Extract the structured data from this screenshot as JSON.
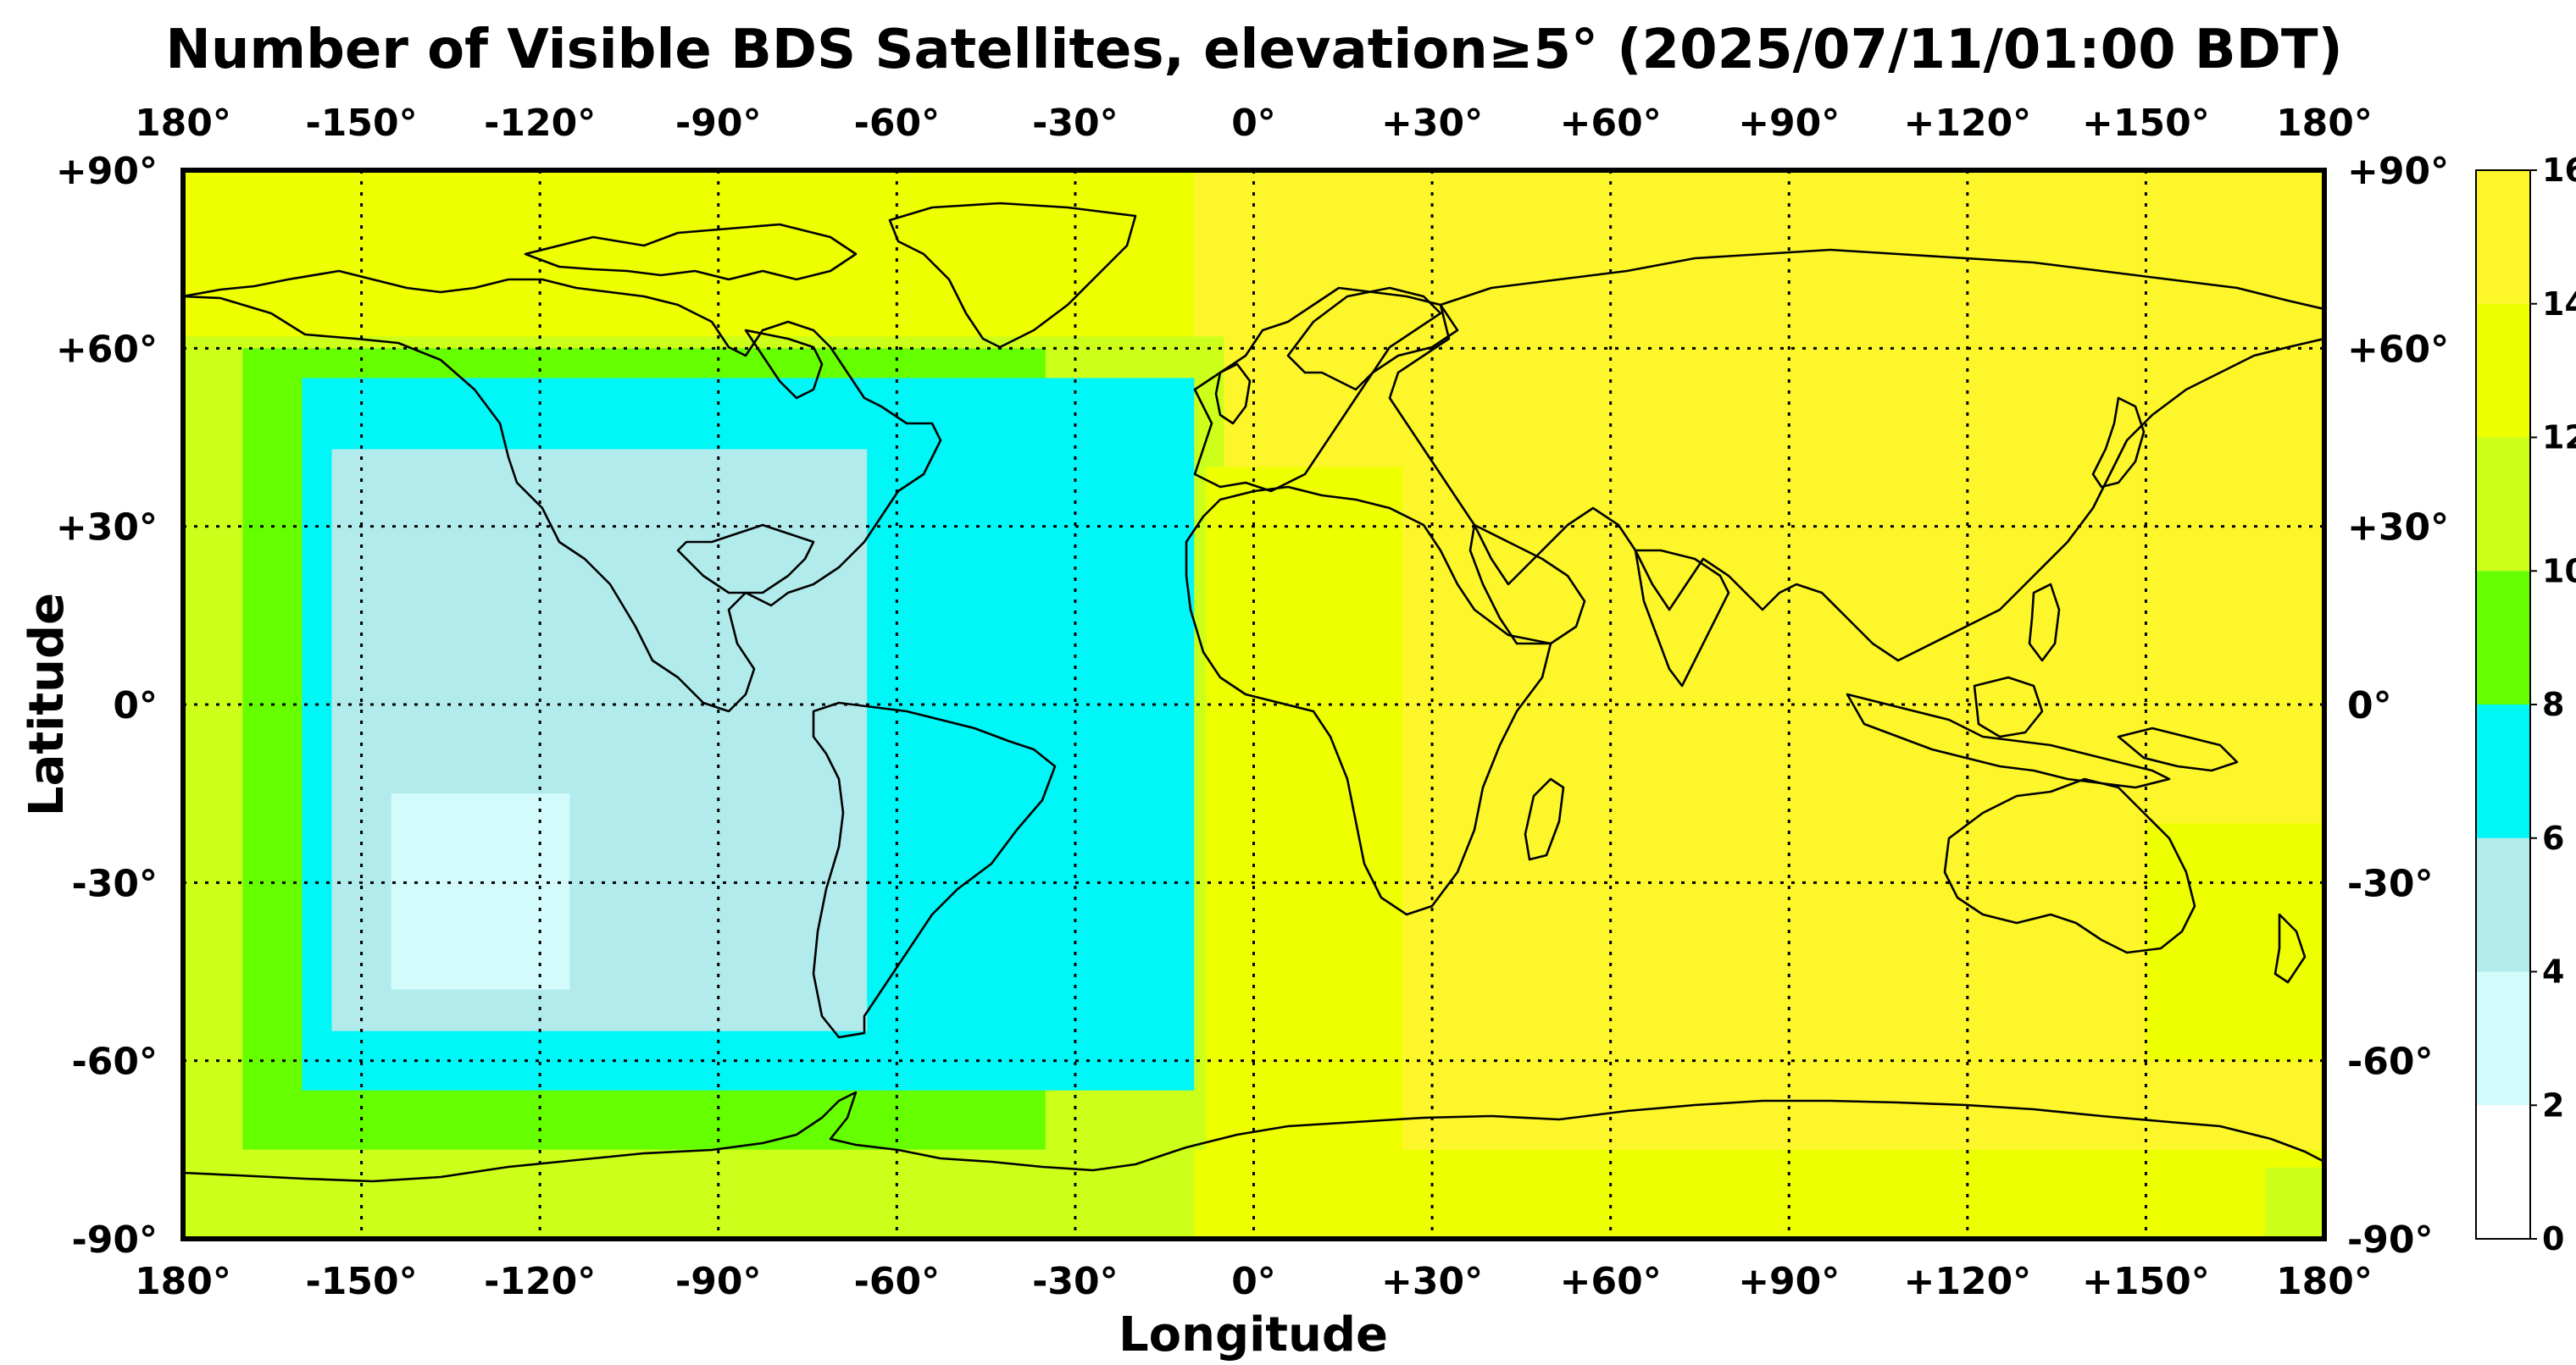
{
  "title": "Number of Visible BDS Satellites, elevation≥5° (2025/07/11/01:00 BDT)",
  "x_axis_label": "Longitude",
  "y_axis_label": "Latitude",
  "x_ticks": [
    {
      "value": -180,
      "label": "180°"
    },
    {
      "value": -150,
      "label": "-150°"
    },
    {
      "value": -120,
      "label": "-120°"
    },
    {
      "value": -90,
      "label": "-90°"
    },
    {
      "value": -60,
      "label": "-60°"
    },
    {
      "value": -30,
      "label": "-30°"
    },
    {
      "value": 0,
      "label": "0°"
    },
    {
      "value": 30,
      "label": "+30°"
    },
    {
      "value": 60,
      "label": "+60°"
    },
    {
      "value": 90,
      "label": "+90°"
    },
    {
      "value": 120,
      "label": "+120°"
    },
    {
      "value": 150,
      "label": "+150°"
    },
    {
      "value": 180,
      "label": "180°"
    }
  ],
  "y_ticks": [
    {
      "value": 90,
      "label": "+90°"
    },
    {
      "value": 60,
      "label": "+60°"
    },
    {
      "value": 30,
      "label": "+30°"
    },
    {
      "value": 0,
      "label": "0°"
    },
    {
      "value": -30,
      "label": "-30°"
    },
    {
      "value": -60,
      "label": "-60°"
    },
    {
      "value": -90,
      "label": "-90°"
    }
  ],
  "colorbar": {
    "ticks": [
      "0",
      "2",
      "4",
      "6",
      "8",
      "10",
      "12",
      "14",
      "16"
    ],
    "bins": [
      {
        "min": 0,
        "max": 2,
        "color": "#ffffff"
      },
      {
        "min": 2,
        "max": 4,
        "color": "#d4fbfb"
      },
      {
        "min": 4,
        "max": 6,
        "color": "#b2ebeb"
      },
      {
        "min": 6,
        "max": 8,
        "color": "#00f7f7"
      },
      {
        "min": 8,
        "max": 10,
        "color": "#66ff00"
      },
      {
        "min": 10,
        "max": 12,
        "color": "#ccff1a"
      },
      {
        "min": 12,
        "max": 14,
        "color": "#eeff00"
      },
      {
        "min": 14,
        "max": 16,
        "color": "#fdf62a"
      }
    ]
  },
  "map_data": {
    "lon_range": [
      -180,
      180
    ],
    "lat_range": [
      -90,
      90
    ],
    "field": "visible_satellite_count",
    "regions": [
      {
        "level": 14,
        "lon": [
          -180,
          180
        ],
        "lat": [
          -90,
          90
        ]
      },
      {
        "level": 12,
        "lon": [
          -180,
          -10
        ],
        "lat": [
          60,
          90
        ]
      },
      {
        "level": 10,
        "lon": [
          -180,
          -5
        ],
        "lat": [
          -90,
          62
        ]
      },
      {
        "level": 8,
        "lon": [
          -170,
          -35
        ],
        "lat": [
          -75,
          60
        ]
      },
      {
        "level": 6,
        "lon": [
          -160,
          -10
        ],
        "lat": [
          -65,
          55
        ]
      },
      {
        "level": 4,
        "lon": [
          -155,
          -65
        ],
        "lat": [
          -55,
          43
        ]
      },
      {
        "level": 2,
        "lon": [
          -145,
          -115
        ],
        "lat": [
          -48,
          -15
        ]
      },
      {
        "level": 12,
        "lon": [
          -8,
          25
        ],
        "lat": [
          -90,
          40
        ]
      },
      {
        "level": 12,
        "lon": [
          -180,
          180
        ],
        "lat": [
          -90,
          -75
        ]
      },
      {
        "level": 10,
        "lon": [
          -180,
          -10
        ],
        "lat": [
          -90,
          -75
        ]
      },
      {
        "level": 12,
        "lon": [
          150,
          180
        ],
        "lat": [
          -60,
          -20
        ]
      },
      {
        "level": 10,
        "lon": [
          170,
          180
        ],
        "lat": [
          -90,
          -78
        ]
      }
    ]
  }
}
